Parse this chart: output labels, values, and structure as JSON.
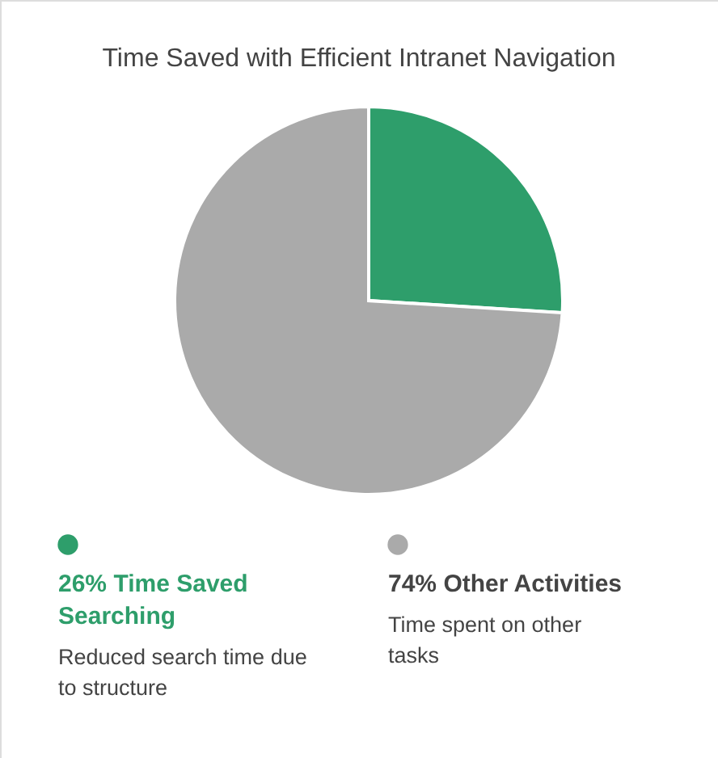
{
  "chart_data": {
    "type": "pie",
    "title": "Time Saved with Efficient Intranet Navigation",
    "categories": [
      "Time Saved Searching",
      "Other Activities"
    ],
    "values": [
      26,
      74
    ],
    "value_labels": [
      "26%",
      "74%"
    ],
    "colors": [
      "#2e9e6b",
      "#aaaaaa"
    ],
    "annotations": [
      "Reduced search time due to structure",
      "Time spent on other tasks"
    ],
    "legend": "bottom"
  }
}
